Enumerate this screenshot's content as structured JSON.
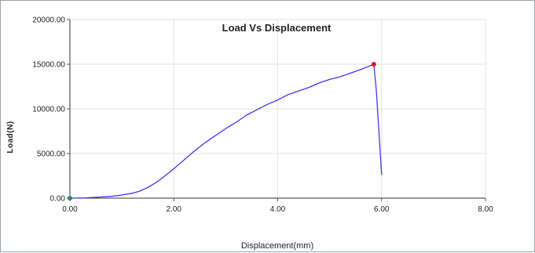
{
  "chart_data": {
    "type": "line",
    "title": "Load Vs Displacement",
    "xlabel": "Displacement(mm)",
    "ylabel": "Load(N)",
    "xlim": [
      0,
      8
    ],
    "ylim": [
      0,
      20000
    ],
    "x_ticks": [
      "0.00",
      "2.00",
      "4.00",
      "6.00",
      "8.00"
    ],
    "x_tick_values": [
      0,
      2,
      4,
      6,
      8
    ],
    "y_ticks": [
      "0.00",
      "5000.00",
      "10000.00",
      "15000.00",
      "20000.00"
    ],
    "y_tick_values": [
      0,
      5000,
      10000,
      15000,
      20000
    ],
    "grid": true,
    "series": [
      {
        "color": "#3b3bea",
        "x": [
          0.0,
          0.3,
          0.5,
          0.8,
          1.0,
          1.2,
          1.35,
          1.5,
          1.7,
          1.85,
          2.0,
          2.2,
          2.4,
          2.6,
          2.8,
          3.0,
          3.2,
          3.4,
          3.6,
          3.8,
          4.0,
          4.2,
          4.4,
          4.6,
          4.8,
          5.0,
          5.2,
          5.4,
          5.6,
          5.85,
          5.9,
          6.0
        ],
        "y": [
          0,
          30,
          100,
          200,
          350,
          550,
          800,
          1200,
          1900,
          2600,
          3300,
          4300,
          5300,
          6200,
          7000,
          7800,
          8500,
          9300,
          9900,
          10500,
          11000,
          11600,
          12000,
          12400,
          12900,
          13300,
          13600,
          14000,
          14400,
          15000,
          12000,
          2600
        ]
      }
    ],
    "markers": [
      {
        "x": 0.0,
        "y": 0,
        "color": "#2e8b57"
      },
      {
        "x": 5.85,
        "y": 15000,
        "color": "#ee1111"
      }
    ]
  }
}
